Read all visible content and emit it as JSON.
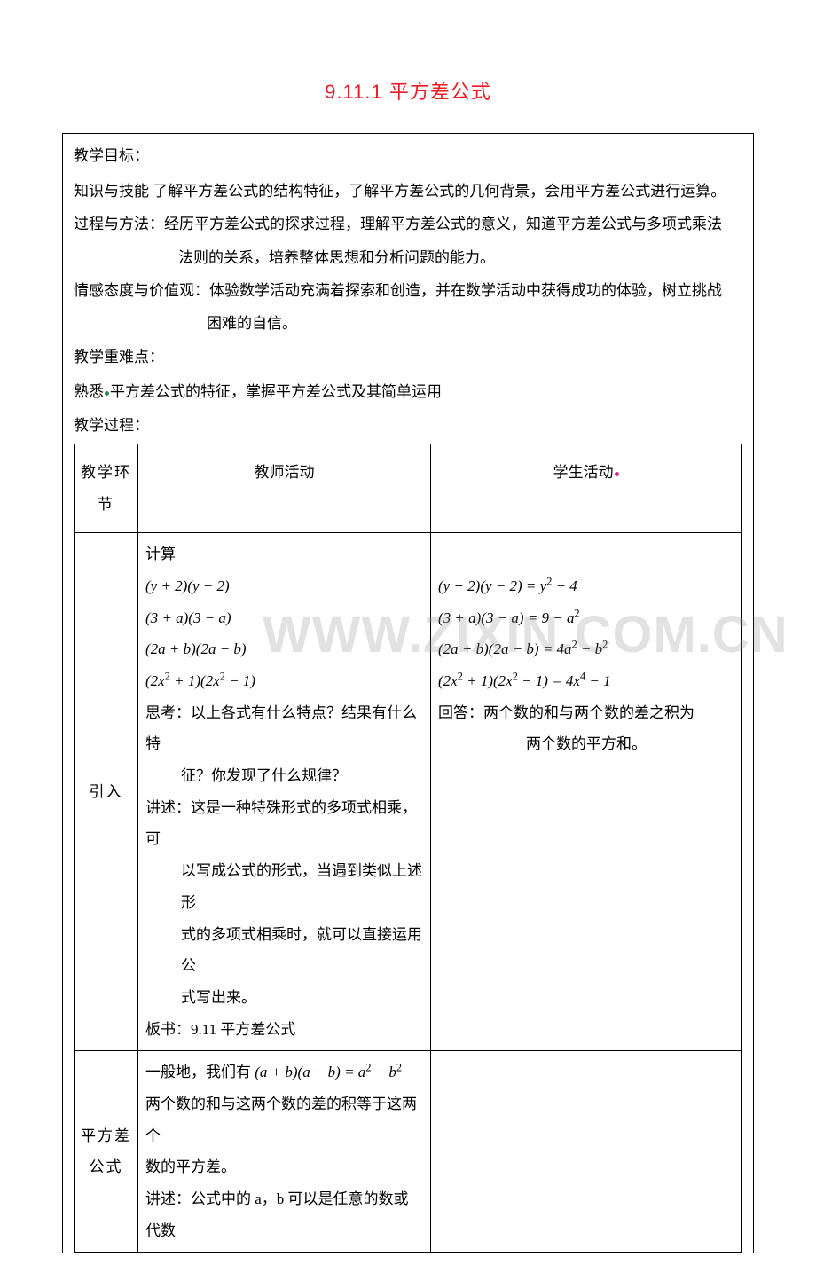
{
  "title": "9.11.1 平方差公式",
  "header": {
    "goals_label": "教学目标：",
    "skill_label": "知识与技能",
    "skill_text": " 了解平方差公式的结构特征，了解平方差公式的几何背景，会用平方差公式进行运算。",
    "method_label": "过程与方法：",
    "method_text1": "经历平方差公式的探求过程，理解平方差公式的意义，知道平方差公式与多项式乘法",
    "method_text2": "法则的关系，培养整体思想和分析问题的能力。",
    "attitude_label": "情感态度与价值观：",
    "attitude_text1": "体验数学活动充满着探索和创造，并在数学活动中获得成功的体验，树立挑战",
    "attitude_text2": "困难的自信。",
    "difficulty_label": "教学重难点：",
    "difficulty_text": "平方差公式的特征，掌握平方差公式及其简单运用",
    "process_label": "教学过程："
  },
  "table": {
    "h1": "教学环节",
    "h2": "教师活动",
    "h3": "学生活动",
    "row1": {
      "c1": "引入",
      "t1": "计算",
      "t2": "思考：以上各式有什么特点？结果有什么特",
      "t3": "征？你发现了什么规律？",
      "t4": "讲述：这是一种特殊形式的多项式相乘，可",
      "t5": "以写成公式的形式，当遇到类似上述形",
      "t6": "式的多项式相乘时，就可以直接运用公",
      "t7": "式写出来。",
      "t8": "板书：9.11 平方差公式",
      "s1": "回答：两个数的和与两个数的差之积为",
      "s2": "两个数的平方和。"
    },
    "row2": {
      "c1": "平方差公式",
      "t1": "一般地，我们有",
      "t2": "两个数的和与这两个数的差的积等于这两个",
      "t3": "数的平方差。",
      "t4": "讲述：公式中的 a，b 可以是任意的数或代数"
    }
  },
  "formulas": {
    "l1": "(y + 2)(y − 2)",
    "l2": "(3 + a)(3 − a)",
    "l3": "(2a + b)(2a − b)",
    "l4_a": "(2x",
    "l4_b": " + 1)(2x",
    "l4_c": " − 1)",
    "r1": "(y + 2)(y − 2) = y",
    "r1b": " − 4",
    "r2": "(3 + a)(3 − a) = 9 − a",
    "r3": "(2a + b)(2a − b) = 4a",
    "r3b": " − b",
    "r4_a": "(2x",
    "r4_b": " + 1)(2x",
    "r4_c": " − 1) = 4x",
    "r4_d": " − 1",
    "gen_a": "(a + b)(a − b) = a",
    "gen_b": " − b"
  },
  "watermark": "WWW.ZIXIN.COM.CN",
  "colors": {
    "title": "#ed1c24",
    "green": "#2e8b57",
    "pink": "#d63384",
    "wm": "rgba(150,150,150,0.28)"
  }
}
